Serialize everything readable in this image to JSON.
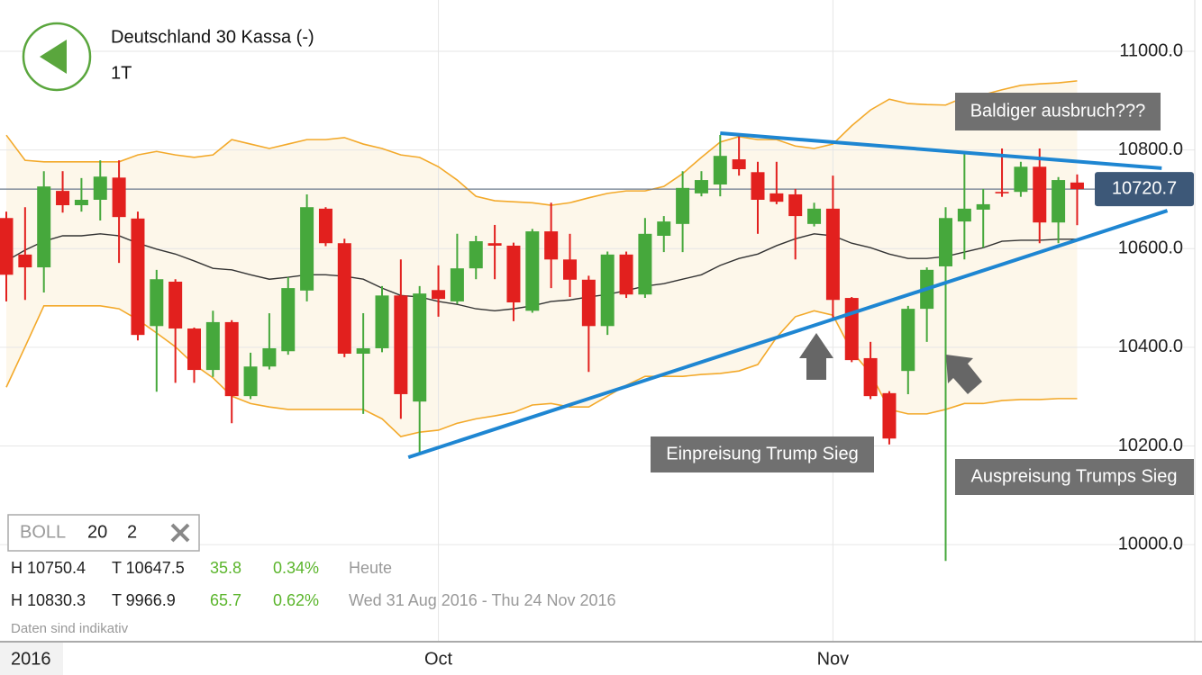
{
  "header": {
    "title": "Deutschland 30 Kassa (-)",
    "timeframe": "1T"
  },
  "chart_data": {
    "type": "candlestick",
    "categories": [
      null,
      null,
      null,
      null,
      null,
      null,
      null,
      null,
      null,
      null,
      null,
      null,
      null,
      null,
      null,
      null,
      null,
      null,
      null,
      null,
      null,
      null,
      null,
      "Oct",
      null,
      null,
      null,
      null,
      null,
      null,
      null,
      null,
      null,
      null,
      null,
      null,
      null,
      null,
      null,
      null,
      null,
      null,
      null,
      null,
      "Nov",
      null,
      null,
      null,
      null,
      null,
      null,
      null,
      null,
      null,
      null,
      null,
      null,
      null
    ],
    "year_label": "2016",
    "open": [
      10662,
      10588,
      10562,
      10717,
      10688,
      10699,
      10744,
      10661,
      10443,
      10533,
      10438,
      10354,
      10451,
      10301,
      10361,
      10392,
      10515,
      10681,
      10611,
      10387,
      10398,
      10505,
      10290,
      10516,
      10493,
      10560,
      10611,
      10606,
      10474,
      10635,
      10578,
      10537,
      10443,
      10588,
      10507,
      10626,
      10650,
      10712,
      10730,
      10781,
      10755,
      10712,
      10710,
      10650,
      10681,
      10500,
      10378,
      10307,
      10352,
      10478,
      10564,
      10655,
      10679,
      10715,
      10715,
      10766,
      10653,
      10734
    ],
    "high": [
      10675,
      10684,
      10757,
      10757,
      10743,
      10779,
      10779,
      10675,
      10557,
      10538,
      10440,
      10474,
      10455,
      10389,
      10469,
      10542,
      10710,
      10684,
      10620,
      10469,
      10524,
      10578,
      10524,
      10566,
      10630,
      10626,
      10648,
      10612,
      10640,
      10693,
      10630,
      10545,
      10594,
      10594,
      10662,
      10666,
      10757,
      10757,
      10830.3,
      10830,
      10776,
      10776,
      10721,
      10693,
      10748,
      10502,
      10411,
      10311,
      10484,
      10562,
      10684,
      10797,
      10721,
      10803,
      10776,
      10803,
      10745,
      10750.4
    ],
    "low": [
      10493,
      10496,
      10511,
      10673,
      10675,
      10657,
      10571,
      10414,
      10310,
      10328,
      10328,
      10340,
      10246,
      10295,
      10355,
      10385,
      10493,
      10605,
      10380,
      10265,
      10390,
      10255,
      10182,
      10462,
      10488,
      10538,
      10538,
      10453,
      10470,
      10520,
      10502,
      10350,
      10425,
      10500,
      10500,
      10593,
      10593,
      10706,
      10706,
      10748,
      10630,
      10690,
      10578,
      10645,
      10456,
      10370,
      10295,
      10203,
      10305,
      10411,
      9966.9,
      10578,
      10602,
      10705,
      10705,
      10611,
      10611,
      10647.5
    ],
    "close": [
      10547,
      10562,
      10726,
      10688,
      10699,
      10746,
      10664,
      10425,
      10538,
      10438,
      10354,
      10451,
      10301,
      10361,
      10398,
      10520,
      10684,
      10611,
      10387,
      10398,
      10505,
      10305,
      10509,
      10498,
      10560,
      10615,
      10606,
      10491,
      10635,
      10578,
      10537,
      10443,
      10588,
      10507,
      10630,
      10655,
      10723,
      10739,
      10788,
      10761,
      10699,
      10695,
      10666,
      10681,
      10496,
      10374,
      10301,
      10215,
      10478,
      10557,
      10662,
      10681,
      10690,
      10712,
      10766,
      10653,
      10739,
      10720.7
    ],
    "up_color": "#46a83c",
    "down_color": "#e2201e",
    "bollinger": {
      "band_color": "#f3a92a",
      "middle_color": "#333333",
      "fill": "#fdf7ea",
      "upper": [
        10830,
        10779,
        10776,
        10776,
        10776,
        10776,
        10776,
        10790,
        10797,
        10790,
        10785,
        10790,
        10821,
        10812,
        10803,
        10812,
        10821,
        10821,
        10825,
        10812,
        10803,
        10790,
        10785,
        10766,
        10739,
        10706,
        10697,
        10695,
        10693,
        10688,
        10693,
        10703,
        10712,
        10717,
        10717,
        10726,
        10752,
        10785,
        10816,
        10827,
        10821,
        10821,
        10808,
        10803,
        10812,
        10849,
        10881,
        10903,
        10894,
        10892,
        10891,
        10907,
        10912,
        10922,
        10931,
        10934,
        10936,
        10940
      ],
      "middle": [
        10575,
        10597,
        10615,
        10626,
        10626,
        10630,
        10626,
        10611,
        10599,
        10589,
        10575,
        10560,
        10557,
        10547,
        10538,
        10542,
        10547,
        10547,
        10544,
        10538,
        10520,
        10505,
        10502,
        10493,
        10487,
        10478,
        10474,
        10478,
        10484,
        10493,
        10496,
        10502,
        10507,
        10515,
        10524,
        10529,
        10538,
        10547,
        10566,
        10580,
        10589,
        10606,
        10620,
        10630,
        10626,
        10611,
        10602,
        10589,
        10580,
        10580,
        10584,
        10593,
        10602,
        10615,
        10617,
        10617,
        10619,
        10619
      ],
      "lower": [
        10319,
        10401,
        10484,
        10484,
        10484,
        10484,
        10478,
        10456,
        10429,
        10401,
        10365,
        10338,
        10301,
        10286,
        10279,
        10274,
        10274,
        10274,
        10274,
        10274,
        10255,
        10219,
        10228,
        10232,
        10246,
        10255,
        10261,
        10268,
        10283,
        10286,
        10279,
        10279,
        10301,
        10323,
        10341,
        10341,
        10341,
        10345,
        10347,
        10352,
        10365,
        10420,
        10462,
        10474,
        10465,
        10392,
        10347,
        10274,
        10265,
        10265,
        10274,
        10286,
        10286,
        10292,
        10294,
        10294,
        10296,
        10296
      ]
    },
    "ylim": [
      9805,
      11104
    ],
    "yticks": [
      {
        "value": 10000,
        "label": "10000.0"
      },
      {
        "value": 10200,
        "label": "10200.0"
      },
      {
        "value": 10400,
        "label": "10400.0"
      },
      {
        "value": 10600,
        "label": "10600.0"
      },
      {
        "value": 10800,
        "label": "10800.0"
      },
      {
        "value": 11000,
        "label": "11000.0"
      }
    ],
    "grid": true,
    "last_price": 10720.7,
    "last_price_color": "#3d5878",
    "trendline_color": "#1e86d2",
    "trendlines": [
      {
        "x": [
          38,
          61.5
        ],
        "y": [
          10834,
          10763
        ]
      },
      {
        "x": [
          21.4,
          61.8
        ],
        "y": [
          10177,
          10677
        ]
      }
    ],
    "annotations": [
      "Baldiger ausbruch???",
      "Einpreisung Trump Sieg",
      "Auspreisung Trumps Sieg"
    ]
  },
  "indicator": {
    "name": "BOLL",
    "period": 20,
    "deviation": 2
  },
  "stats": [
    {
      "high": "H 10750.4",
      "low": "T 10647.5",
      "change": "35.8",
      "percent": "0.34%",
      "period": "Heute"
    },
    {
      "high": "H 10830.3",
      "low": "T 9966.9",
      "change": "65.7",
      "percent": "0.62%",
      "period": "Wed 31 Aug 2016 - Thu 24 Nov 2016"
    }
  ],
  "disclaimer": "Daten sind indikativ"
}
